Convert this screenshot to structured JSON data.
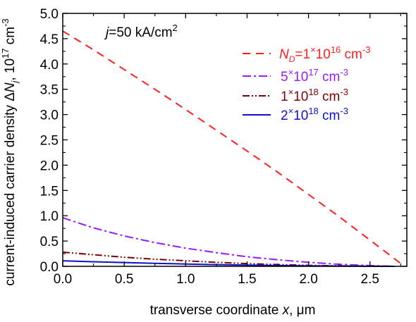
{
  "chart_data": {
    "type": "line",
    "xlabel": {
      "prefix": "transverse coordinate ",
      "var": "x",
      "suffix": ", μm"
    },
    "ylabel": {
      "prefix": "current-induced carrier density Δ",
      "var": "N",
      "sub": "j",
      "suffix": ", 10",
      "exp": "17",
      "unit": " cm",
      "unit_exp": "-3"
    },
    "annotation": {
      "var": "j",
      "text": "=50 kA/cm",
      "sup": "2"
    },
    "xlim": [
      0.0,
      2.8
    ],
    "ylim": [
      0.0,
      5.0
    ],
    "x_ticks": [
      "0.0",
      "0.5",
      "1.0",
      "1.5",
      "2.0",
      "2.5"
    ],
    "y_ticks": [
      "0.0",
      "0.5",
      "1.0",
      "1.5",
      "2.0",
      "2.5",
      "3.0",
      "3.5",
      "4.0",
      "4.5",
      "5.0"
    ],
    "grid": false,
    "legend_position": "top-right",
    "series": [
      {
        "legend": {
          "var": "N",
          "sub": "D",
          "text": "=1",
          "mid": "×10",
          "exp": "16",
          "unit": " cm",
          "unit_exp": "-3"
        },
        "color": "#ff1f1f",
        "dash": "dash",
        "x": [
          0.0,
          0.25,
          0.5,
          0.75,
          1.0,
          1.25,
          1.5,
          1.75,
          2.0,
          2.25,
          2.5,
          2.7,
          2.78
        ],
        "y": [
          4.65,
          4.28,
          3.89,
          3.5,
          3.1,
          2.69,
          2.28,
          1.86,
          1.42,
          0.98,
          0.52,
          0.15,
          0.0
        ]
      },
      {
        "legend": {
          "text": "5",
          "mid": "×10",
          "exp": "17",
          "unit": " cm",
          "unit_exp": "-3"
        },
        "color": "#9a1aff",
        "dash": "dashdot",
        "x": [
          0.0,
          0.25,
          0.5,
          0.75,
          1.0,
          1.25,
          1.5,
          1.75,
          2.0,
          2.25,
          2.5,
          2.7
        ],
        "y": [
          0.96,
          0.76,
          0.6,
          0.47,
          0.36,
          0.27,
          0.19,
          0.13,
          0.08,
          0.04,
          0.015,
          0.0
        ]
      },
      {
        "legend": {
          "text": "1",
          "mid": "×10",
          "exp": "18",
          "unit": " cm",
          "unit_exp": "-3"
        },
        "color": "#800000",
        "dash": "dashdotdot",
        "x": [
          0.0,
          0.25,
          0.5,
          0.75,
          1.0,
          1.25,
          1.5,
          1.75,
          2.0,
          2.25,
          2.5,
          2.7
        ],
        "y": [
          0.28,
          0.23,
          0.18,
          0.14,
          0.11,
          0.08,
          0.055,
          0.035,
          0.02,
          0.01,
          0.004,
          0.0
        ]
      },
      {
        "legend": {
          "text": "2",
          "mid": "×10",
          "exp": "18",
          "unit": " cm",
          "unit_exp": "-3"
        },
        "color": "#1010c8",
        "dash": "solid",
        "x": [
          0.0,
          0.25,
          0.5,
          0.75,
          1.0,
          1.25,
          1.5,
          1.75,
          2.0,
          2.25,
          2.5,
          2.7
        ],
        "y": [
          0.11,
          0.09,
          0.075,
          0.06,
          0.046,
          0.034,
          0.024,
          0.016,
          0.009,
          0.005,
          0.002,
          0.0
        ]
      }
    ]
  }
}
